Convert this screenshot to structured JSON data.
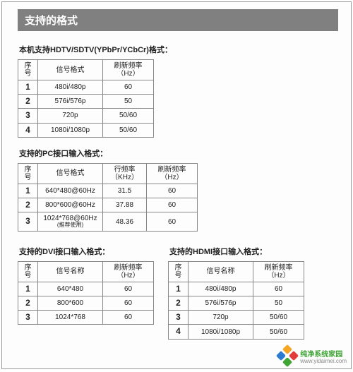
{
  "title": "支持的格式",
  "sections": {
    "hdtv": {
      "heading": "本机支持HDTV/SDTV(YPbPr/YCbCr)格式：",
      "cols": {
        "seq": "序号",
        "sig": "信号格式",
        "hz": "刷新频率（Hz）"
      },
      "rows": [
        {
          "seq": "1",
          "sig": "480i/480p",
          "hz": "60"
        },
        {
          "seq": "2",
          "sig": "576i/576p",
          "hz": "50"
        },
        {
          "seq": "3",
          "sig": "720p",
          "hz": "50/60"
        },
        {
          "seq": "4",
          "sig": "1080i/1080p",
          "hz": "50/60"
        }
      ]
    },
    "pc": {
      "heading": "支持的PC接口输入格式：",
      "cols": {
        "seq": "序号",
        "sig": "信号格式",
        "khz": "行频率（KHz）",
        "hz": "刷新频率（Hz）"
      },
      "rows": [
        {
          "seq": "1",
          "sig": "640*480@60Hz",
          "sub": "",
          "khz": "31.5",
          "hz": "60"
        },
        {
          "seq": "2",
          "sig": "800*600@60Hz",
          "sub": "",
          "khz": "37.88",
          "hz": "60"
        },
        {
          "seq": "3",
          "sig": "1024*768@60Hz",
          "sub": "(推荐使用)",
          "khz": "48.36",
          "hz": "60"
        }
      ]
    },
    "dvi": {
      "heading": "支持的DVI接口输入格式：",
      "cols": {
        "seq": "序号",
        "sig": "信号名称",
        "hz": "刷新频率（Hz）"
      },
      "rows": [
        {
          "seq": "1",
          "sig": "640*480",
          "hz": "60"
        },
        {
          "seq": "2",
          "sig": "800*600",
          "hz": "60"
        },
        {
          "seq": "3",
          "sig": "1024*768",
          "hz": "60"
        }
      ]
    },
    "hdmi": {
      "heading": "支持的HDMI接口输入格式：",
      "cols": {
        "seq": "序号",
        "sig": "信号名称",
        "hz": "刷新频率（Hz）"
      },
      "rows": [
        {
          "seq": "1",
          "sig": "480i/480p",
          "hz": "60"
        },
        {
          "seq": "2",
          "sig": "576i/576p",
          "hz": "50"
        },
        {
          "seq": "3",
          "sig": "720p",
          "hz": "50/60"
        },
        {
          "seq": "4",
          "sig": "1080i/1080p",
          "hz": "50/60"
        }
      ]
    }
  },
  "watermark": {
    "text": "纯净系统家园",
    "url": "www.yidaimei.com"
  },
  "style": {
    "title_bg": "#808080",
    "title_fg": "#ffffff",
    "border_color": "#888888",
    "text_color": "#222222",
    "page_bg": "#fdfdfd",
    "wm_green": "#3fa535"
  }
}
